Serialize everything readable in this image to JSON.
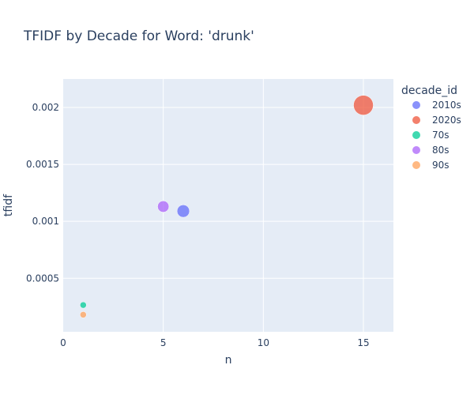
{
  "chart_data": {
    "type": "scatter",
    "title": "TFIDF by Decade for Word: 'drunk'",
    "xlabel": "n",
    "ylabel": "tfidf",
    "xlim": [
      0,
      16.5
    ],
    "ylim": [
      3e-05,
      0.00225
    ],
    "xticks": [
      0,
      5,
      10,
      15
    ],
    "xtick_labels": [
      "0",
      "5",
      "10",
      "15"
    ],
    "yticks": [
      0.0005,
      0.001,
      0.0015,
      0.002
    ],
    "ytick_labels": [
      "0.0005",
      "0.001",
      "0.0015",
      "0.002"
    ],
    "grid": true,
    "plot_background": "#e5ecf6",
    "legend": {
      "title": "decade_id",
      "position": "right"
    },
    "series": [
      {
        "name": "2010s",
        "color": "#636efa",
        "points": [
          {
            "x": 6,
            "y": 0.00109
          }
        ]
      },
      {
        "name": "2020s",
        "color": "#ef553b",
        "points": [
          {
            "x": 15,
            "y": 0.00202
          }
        ]
      },
      {
        "name": "70s",
        "color": "#00cc96",
        "points": [
          {
            "x": 1,
            "y": 0.000265
          }
        ]
      },
      {
        "name": "80s",
        "color": "#ab63fa",
        "points": [
          {
            "x": 5,
            "y": 0.00113
          }
        ]
      },
      {
        "name": "90s",
        "color": "#ffa15a",
        "points": [
          {
            "x": 1,
            "y": 0.00018
          }
        ]
      }
    ],
    "marker_size_encodes": "n"
  }
}
